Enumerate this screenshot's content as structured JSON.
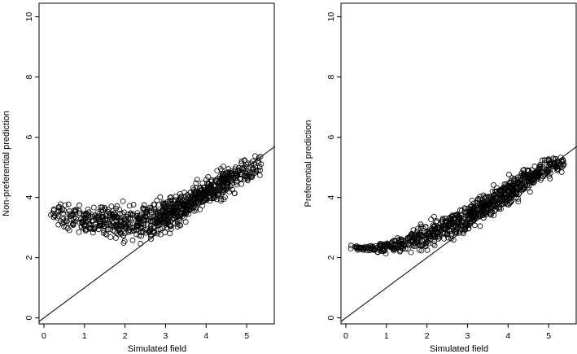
{
  "chart_data": [
    {
      "type": "scatter",
      "panel": "left",
      "xlabel": "Simulated field",
      "ylabel": "Non-preferential prediction",
      "xlim": [
        -0.12,
        5.7
      ],
      "ylim": [
        -0.2,
        10.45
      ],
      "xticks": [
        "0",
        "1",
        "2",
        "3",
        "4",
        "5"
      ],
      "yticks": [
        "0",
        "2",
        "4",
        "6",
        "8",
        "10"
      ],
      "reference_line": {
        "intercept": 0,
        "slope": 1
      },
      "trend": [
        [
          0.1,
          3.5
        ],
        [
          0.5,
          3.35
        ],
        [
          1.0,
          3.2
        ],
        [
          1.5,
          3.15
        ],
        [
          2.0,
          3.15
        ],
        [
          2.5,
          3.2
        ],
        [
          3.0,
          3.4
        ],
        [
          3.5,
          3.75
        ],
        [
          4.0,
          4.15
        ],
        [
          4.5,
          4.5
        ],
        [
          5.0,
          4.85
        ],
        [
          5.4,
          5.15
        ]
      ],
      "spread": [
        [
          0.1,
          0.1
        ],
        [
          0.5,
          0.35
        ],
        [
          1.0,
          0.45
        ],
        [
          1.5,
          0.5
        ],
        [
          2.0,
          0.55
        ],
        [
          2.5,
          0.55
        ],
        [
          3.0,
          0.5
        ],
        [
          3.5,
          0.45
        ],
        [
          4.0,
          0.42
        ],
        [
          4.5,
          0.4
        ],
        [
          5.0,
          0.4
        ],
        [
          5.4,
          0.35
        ]
      ],
      "density": [
        [
          0.1,
          0.15
        ],
        [
          0.5,
          0.35
        ],
        [
          1.0,
          0.5
        ],
        [
          1.5,
          0.55
        ],
        [
          2.0,
          0.6
        ],
        [
          2.5,
          0.75
        ],
        [
          3.0,
          0.95
        ],
        [
          3.5,
          1.0
        ],
        [
          4.0,
          1.0
        ],
        [
          4.5,
          0.9
        ],
        [
          5.0,
          0.6
        ],
        [
          5.4,
          0.25
        ]
      ],
      "n_points": 900,
      "seed": 7
    },
    {
      "type": "scatter",
      "panel": "right",
      "xlabel": "Simulated field",
      "ylabel": "Preferential prediction",
      "xlim": [
        -0.12,
        5.7
      ],
      "ylim": [
        -0.2,
        10.45
      ],
      "xticks": [
        "0",
        "1",
        "2",
        "3",
        "4",
        "5"
      ],
      "yticks": [
        "0",
        "2",
        "4",
        "6",
        "8",
        "10"
      ],
      "reference_line": {
        "intercept": 0,
        "slope": 1
      },
      "trend": [
        [
          0.1,
          2.35
        ],
        [
          0.5,
          2.3
        ],
        [
          1.0,
          2.35
        ],
        [
          1.5,
          2.5
        ],
        [
          2.0,
          2.75
        ],
        [
          2.5,
          3.0
        ],
        [
          3.0,
          3.35
        ],
        [
          3.5,
          3.75
        ],
        [
          4.0,
          4.15
        ],
        [
          4.5,
          4.6
        ],
        [
          5.0,
          4.95
        ],
        [
          5.4,
          5.2
        ]
      ],
      "spread": [
        [
          0.1,
          0.08
        ],
        [
          0.5,
          0.1
        ],
        [
          1.0,
          0.15
        ],
        [
          1.5,
          0.25
        ],
        [
          2.0,
          0.35
        ],
        [
          2.5,
          0.38
        ],
        [
          3.0,
          0.4
        ],
        [
          3.5,
          0.4
        ],
        [
          4.0,
          0.38
        ],
        [
          4.5,
          0.33
        ],
        [
          5.0,
          0.28
        ],
        [
          5.4,
          0.22
        ]
      ],
      "density": [
        [
          0.1,
          0.15
        ],
        [
          0.5,
          0.35
        ],
        [
          1.0,
          0.5
        ],
        [
          1.5,
          0.55
        ],
        [
          2.0,
          0.6
        ],
        [
          2.5,
          0.75
        ],
        [
          3.0,
          0.95
        ],
        [
          3.5,
          1.0
        ],
        [
          4.0,
          1.0
        ],
        [
          4.5,
          0.9
        ],
        [
          5.0,
          0.6
        ],
        [
          5.4,
          0.25
        ]
      ],
      "n_points": 900,
      "seed": 11
    }
  ]
}
